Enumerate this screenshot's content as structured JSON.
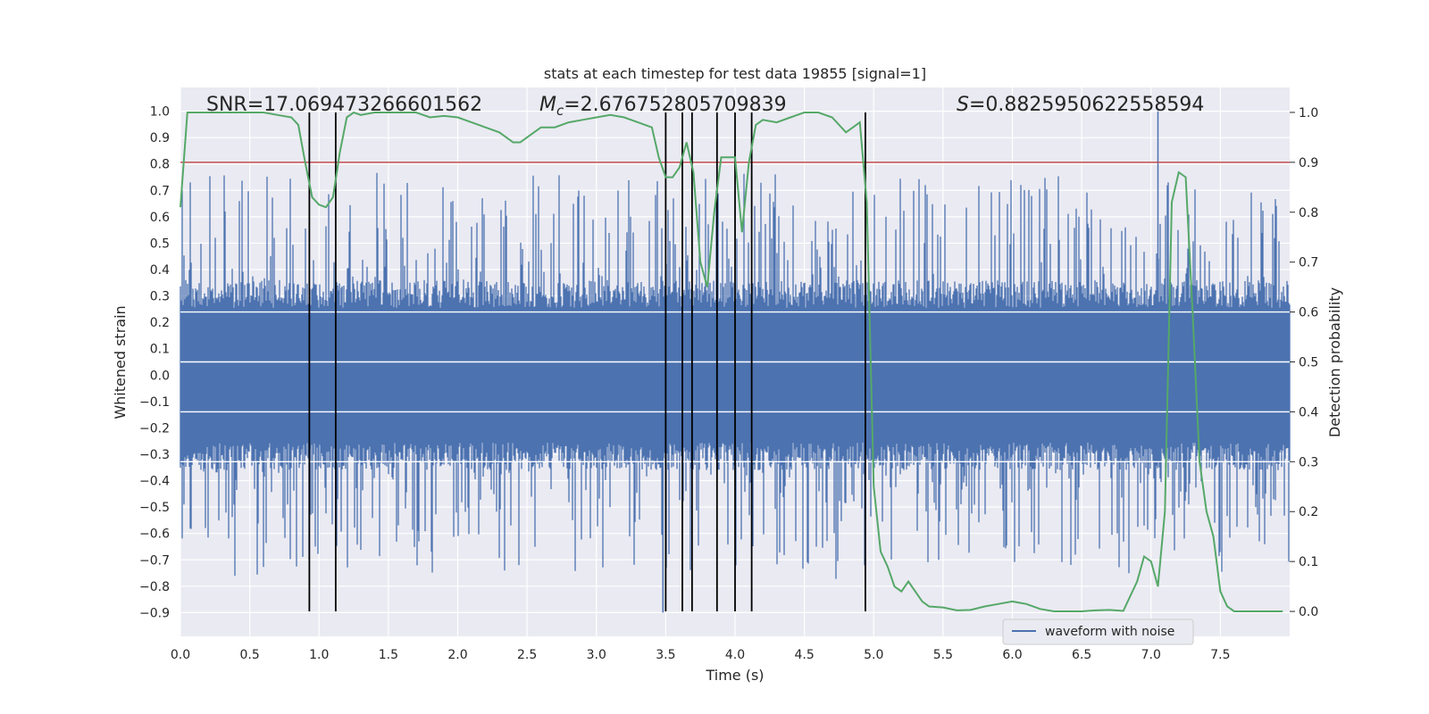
{
  "chart_data": {
    "type": "line",
    "title": "stats at each timestep for test data 19855 [signal=1]",
    "xlabel": "Time (s)",
    "ylabel_left": "Whitened strain",
    "ylabel_right": "Detection probability",
    "xlim": [
      0.0,
      8.0
    ],
    "ylim_left": [
      -0.99,
      1.09
    ],
    "ylim_right": [
      -0.05,
      1.05
    ],
    "x_ticks": [
      "0.0",
      "0.5",
      "1.0",
      "1.5",
      "2.0",
      "2.5",
      "3.0",
      "3.5",
      "4.0",
      "4.5",
      "5.0",
      "5.5",
      "6.0",
      "6.5",
      "7.0",
      "7.5"
    ],
    "y_ticks_left": [
      "−0.9",
      "−0.8",
      "−0.7",
      "−0.6",
      "−0.5",
      "−0.4",
      "−0.3",
      "−0.2",
      "−0.1",
      "0.0",
      "0.1",
      "0.2",
      "0.3",
      "0.4",
      "0.5",
      "0.6",
      "0.7",
      "0.8",
      "0.9",
      "1.0"
    ],
    "y_ticks_right": [
      "0.0",
      "0.1",
      "0.2",
      "0.3",
      "0.4",
      "0.5",
      "0.6",
      "0.7",
      "0.8",
      "0.9",
      "1.0"
    ],
    "annotations": {
      "snr": "SNR=17.069473266601562",
      "mc_symbol": "M",
      "mc_subscript": "c",
      "mc_value": "=2.676752805709839",
      "s_symbol": "S",
      "s_value": "=0.8825950622558594"
    },
    "legend": {
      "label": "waveform with noise",
      "position": "lower-right"
    },
    "threshold": {
      "value": 0.9,
      "axis": "right",
      "color": "#c44e52"
    },
    "detection_markers_s": [
      0.93,
      1.12,
      3.5,
      3.62,
      3.69,
      3.87,
      4.0,
      4.12,
      4.94
    ],
    "waveform": {
      "name": "waveform with noise",
      "color": "#4c72b0",
      "typical_amplitude": 0.3,
      "peak_max": 1.0,
      "peak_min": -0.9
    },
    "probability": {
      "name": "detection probability",
      "color": "#55a868",
      "x": [
        0.0,
        0.05,
        0.1,
        0.2,
        0.3,
        0.4,
        0.5,
        0.6,
        0.7,
        0.8,
        0.85,
        0.9,
        0.95,
        1.0,
        1.05,
        1.1,
        1.15,
        1.2,
        1.25,
        1.3,
        1.4,
        1.5,
        1.6,
        1.7,
        1.8,
        1.9,
        2.0,
        2.1,
        2.2,
        2.3,
        2.4,
        2.45,
        2.5,
        2.6,
        2.7,
        2.8,
        2.9,
        3.0,
        3.1,
        3.2,
        3.3,
        3.4,
        3.45,
        3.5,
        3.55,
        3.6,
        3.65,
        3.7,
        3.75,
        3.8,
        3.85,
        3.9,
        3.95,
        4.0,
        4.05,
        4.1,
        4.15,
        4.2,
        4.3,
        4.4,
        4.5,
        4.6,
        4.7,
        4.8,
        4.85,
        4.9,
        4.95,
        5.0,
        5.05,
        5.1,
        5.15,
        5.2,
        5.25,
        5.3,
        5.35,
        5.4,
        5.5,
        5.6,
        5.7,
        5.8,
        5.9,
        6.0,
        6.1,
        6.2,
        6.3,
        6.4,
        6.5,
        6.6,
        6.7,
        6.8,
        6.9,
        6.95,
        7.0,
        7.05,
        7.1,
        7.15,
        7.2,
        7.25,
        7.3,
        7.35,
        7.4,
        7.45,
        7.5,
        7.55,
        7.6,
        7.7,
        7.8,
        7.9,
        7.95
      ],
      "y": [
        0.81,
        1.0,
        1.0,
        1.0,
        1.0,
        1.0,
        1.0,
        1.0,
        0.995,
        0.99,
        0.975,
        0.9,
        0.83,
        0.815,
        0.81,
        0.83,
        0.92,
        0.99,
        1.0,
        0.995,
        1.0,
        1.0,
        1.0,
        1.0,
        0.99,
        0.993,
        0.99,
        0.98,
        0.97,
        0.96,
        0.94,
        0.94,
        0.95,
        0.97,
        0.97,
        0.98,
        0.985,
        0.99,
        0.995,
        0.99,
        0.98,
        0.97,
        0.91,
        0.87,
        0.87,
        0.89,
        0.94,
        0.88,
        0.7,
        0.65,
        0.8,
        0.91,
        0.91,
        0.91,
        0.76,
        0.9,
        0.975,
        0.985,
        0.98,
        0.99,
        1.0,
        1.0,
        0.99,
        0.96,
        0.97,
        0.98,
        0.82,
        0.25,
        0.12,
        0.09,
        0.05,
        0.04,
        0.06,
        0.04,
        0.02,
        0.01,
        0.008,
        0.002,
        0.003,
        0.01,
        0.015,
        0.02,
        0.015,
        0.005,
        0.0,
        0.0,
        0.0,
        0.002,
        0.003,
        0.001,
        0.06,
        0.11,
        0.1,
        0.05,
        0.2,
        0.82,
        0.88,
        0.87,
        0.6,
        0.3,
        0.2,
        0.15,
        0.04,
        0.01,
        0.0,
        0.0,
        0.0,
        0.0,
        0.0
      ]
    }
  }
}
